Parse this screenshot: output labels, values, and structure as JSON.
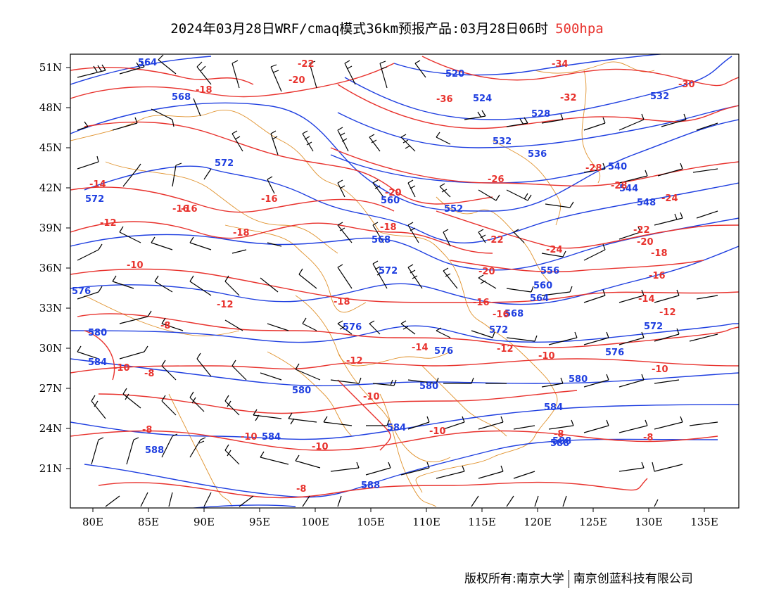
{
  "title": {
    "text": "2024年03月28日WRF/cmaq模式36km预报产品:03月28日06时",
    "level": "500hpa"
  },
  "footer": {
    "copyright": "版权所有:南京大学",
    "company": "南京创蓝科技有限公司"
  },
  "map": {
    "lat_labels": [
      "51N",
      "48N",
      "45N",
      "42N",
      "39N",
      "36N",
      "33N",
      "30N",
      "27N",
      "24N",
      "21N"
    ],
    "lon_labels": [
      "80E",
      "85E",
      "90E",
      "95E",
      "100E",
      "105E",
      "110E",
      "115E",
      "120E",
      "125E",
      "130E",
      "135E"
    ],
    "colors": {
      "height": "#1f3fe0",
      "temperature": "#e8322d",
      "border": "#e0922d",
      "wind": "#000000"
    },
    "height_labels": [
      "564",
      "568",
      "572",
      "572",
      "576",
      "580",
      "584",
      "588",
      "580",
      "584",
      "588",
      "532",
      "528",
      "524",
      "520",
      "532",
      "536",
      "540",
      "544",
      "548",
      "552",
      "556",
      "560",
      "564",
      "568",
      "572",
      "576",
      "580",
      "584",
      "588",
      "572",
      "576",
      "580",
      "584",
      "588",
      "568",
      "560",
      "572",
      "576"
    ],
    "temp_labels": [
      "-22",
      "-20",
      "-18",
      "-16",
      "-14",
      "-16",
      "-12",
      "-10",
      "-8",
      "-10",
      "-8",
      "-8",
      "-10",
      "-10",
      "-8",
      "-34",
      "-32",
      "-36",
      "-30",
      "-28",
      "-26",
      "-28",
      "-24",
      "-20",
      "-22",
      "-20",
      "-18",
      "-16",
      "-14",
      "-12",
      "-10",
      "-8",
      "-8",
      "-16",
      "-18",
      "-18",
      "-20",
      "-22",
      "-24",
      "-16",
      "-18",
      "-16",
      "-14",
      "-12",
      "-12",
      "-10",
      "-10",
      "-12",
      "-10"
    ]
  }
}
